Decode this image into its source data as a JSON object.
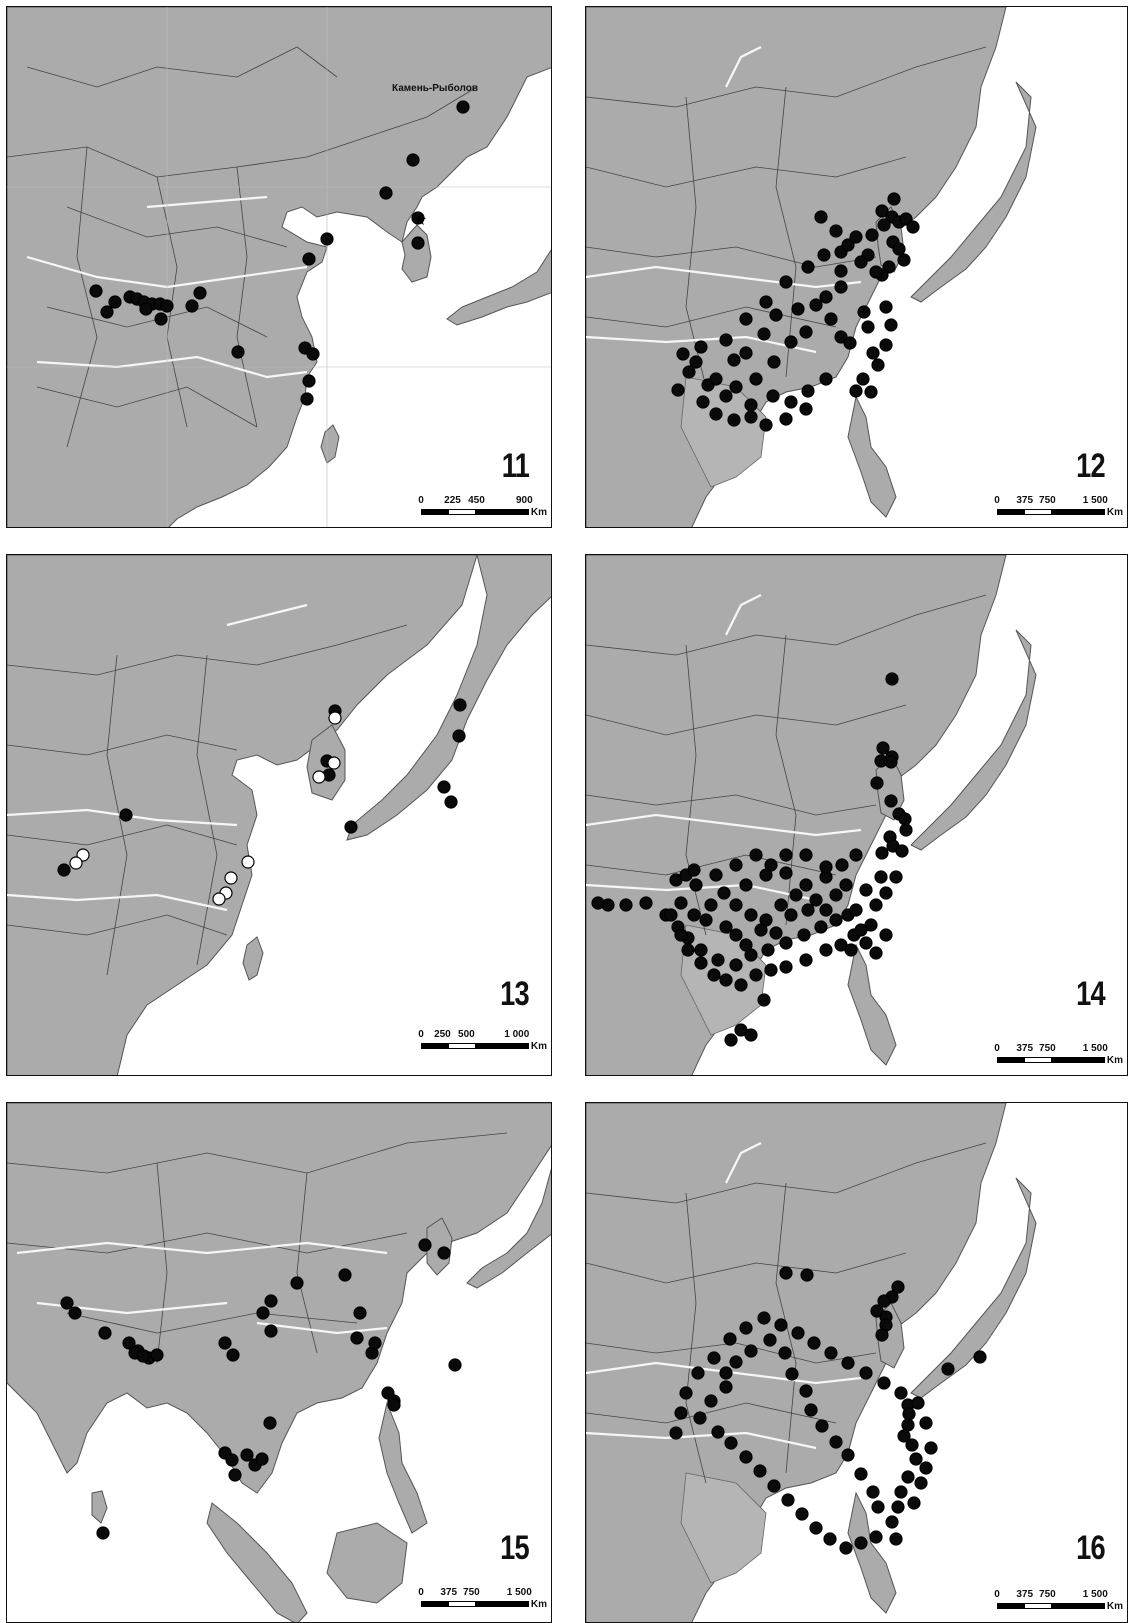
{
  "panels": [
    {
      "id": "11",
      "number": "11",
      "place_label": "Камень-Рыболов",
      "scale": {
        "ticks": [
          "0",
          "225",
          "450",
          "900"
        ],
        "unit": "Km"
      },
      "markers": {
        "filled": 26,
        "open": 0,
        "star": 1
      }
    },
    {
      "id": "12",
      "number": "12",
      "scale": {
        "ticks": [
          "0",
          "375",
          "750",
          "1 500"
        ],
        "unit": "Km"
      },
      "markers": {
        "filled": 90,
        "open": 0
      }
    },
    {
      "id": "13",
      "number": "13",
      "scale": {
        "ticks": [
          "0",
          "250",
          "500",
          "1 000"
        ],
        "unit": "Km"
      },
      "markers": {
        "filled": 12,
        "open": 9
      }
    },
    {
      "id": "14",
      "number": "14",
      "scale": {
        "ticks": [
          "0",
          "375",
          "750",
          "1 500"
        ],
        "unit": "Km"
      },
      "markers": {
        "filled": 110,
        "open": 0
      }
    },
    {
      "id": "15",
      "number": "15",
      "scale": {
        "ticks": [
          "0",
          "375",
          "750",
          "1 500"
        ],
        "unit": "Km"
      },
      "markers": {
        "filled": 40,
        "open": 0
      }
    },
    {
      "id": "16",
      "number": "16",
      "scale": {
        "ticks": [
          "0",
          "375",
          "750",
          "1 500"
        ],
        "unit": "Km"
      },
      "markers": {
        "filled": 75,
        "open": 0
      }
    }
  ],
  "colors": {
    "land": "#a9a9a9",
    "land_light": "#c2c2c2",
    "sea": "#ffffff",
    "border": "#333333",
    "river": "#f4f4f4",
    "marker": "#0a0a0a"
  }
}
